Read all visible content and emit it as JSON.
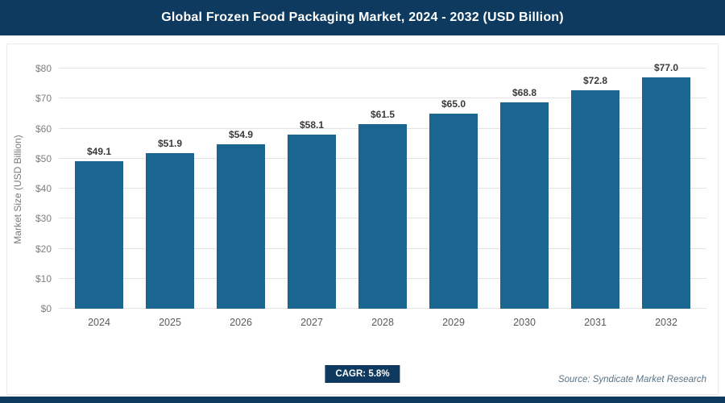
{
  "header": {
    "title": "Global Frozen Food Packaging Market, 2024 - 2032 (USD Billion)"
  },
  "chart_data": {
    "type": "bar",
    "title": "Global Frozen Food Packaging Market, 2024 - 2032 (USD Billion)",
    "ylabel": "Market Size (USD Billion)",
    "xlabel": "",
    "categories": [
      "2024",
      "2025",
      "2026",
      "2027",
      "2028",
      "2029",
      "2030",
      "2031",
      "2032"
    ],
    "values": [
      49.1,
      51.9,
      54.9,
      58.1,
      61.5,
      65.0,
      68.8,
      72.8,
      77.0
    ],
    "value_labels": [
      "$49.1",
      "$51.9",
      "$54.9",
      "$58.1",
      "$61.5",
      "$65.0",
      "$68.8",
      "$72.8",
      "$77.0"
    ],
    "yticks": [
      "$0",
      "$10",
      "$20",
      "$30",
      "$40",
      "$50",
      "$60",
      "$70",
      "$80"
    ],
    "ylim": [
      0,
      80
    ],
    "grid": true,
    "legend_position": "none"
  },
  "footer": {
    "cagr_label": "CAGR: 5.8%",
    "source": "Source: Syndicate Market Research"
  },
  "colors": {
    "header_bg": "#0d3a5e",
    "bar": "#1b6591",
    "gridline": "#e4e4e4",
    "bottom_strip": "#0d3a5e"
  }
}
